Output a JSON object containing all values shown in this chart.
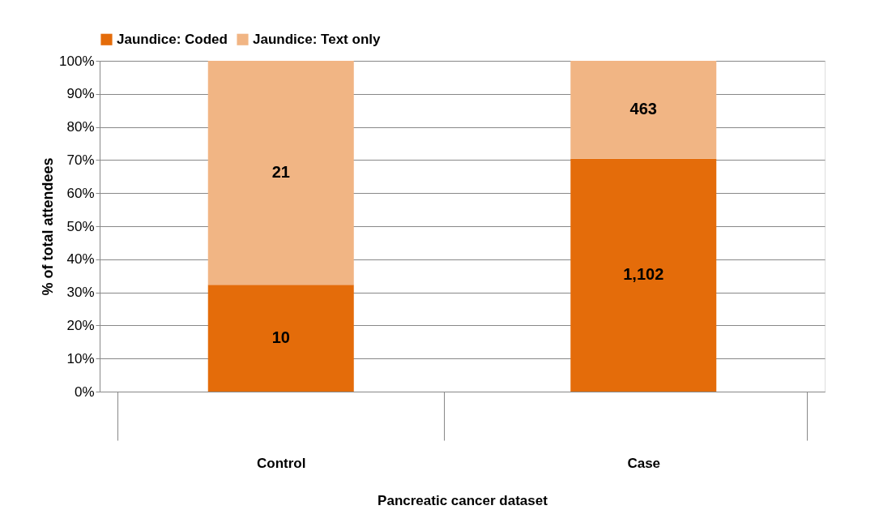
{
  "chart_data": {
    "type": "bar",
    "stacked": true,
    "xlabel": "Pancreatic cancer dataset",
    "ylabel": "% of total attendees",
    "categories": [
      "Control",
      "Case"
    ],
    "series": [
      {
        "name": "Jaundice: Coded",
        "color": "#e46c0a",
        "values": [
          32.3,
          70.4
        ]
      },
      {
        "name": "Jaundice: Text only",
        "color": "#f1b584",
        "values": [
          67.7,
          29.6
        ]
      }
    ],
    "annotations": [
      "10",
      "1,102",
      "21",
      "463"
    ],
    "ylim": [
      0,
      100
    ],
    "yticks": [
      {
        "value": 0,
        "label": "0%"
      },
      {
        "value": 10,
        "label": "10%"
      },
      {
        "value": 20,
        "label": "20%"
      },
      {
        "value": 30,
        "label": "30%"
      },
      {
        "value": 40,
        "label": "40%"
      },
      {
        "value": 50,
        "label": "50%"
      },
      {
        "value": 60,
        "label": "60%"
      },
      {
        "value": 70,
        "label": "70%"
      },
      {
        "value": 80,
        "label": "80%"
      },
      {
        "value": 90,
        "label": "90%"
      },
      {
        "value": 100,
        "label": "100%"
      }
    ],
    "grid": "y",
    "legend": "top"
  }
}
